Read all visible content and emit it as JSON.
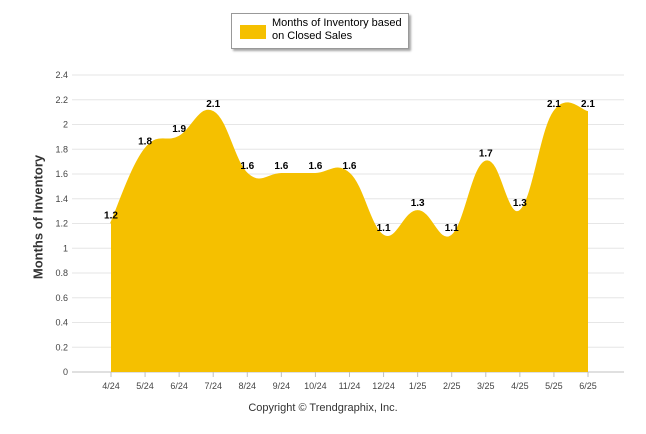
{
  "chart_data": {
    "type": "area",
    "categories": [
      "4/24",
      "5/24",
      "6/24",
      "7/24",
      "8/24",
      "9/24",
      "10/24",
      "11/24",
      "12/24",
      "1/25",
      "2/25",
      "3/25",
      "4/25",
      "5/25",
      "6/25"
    ],
    "series": [
      {
        "name": "Months of Inventory based on Closed Sales",
        "values": [
          1.2,
          1.8,
          1.9,
          2.1,
          1.6,
          1.6,
          1.6,
          1.6,
          1.1,
          1.3,
          1.1,
          1.7,
          1.3,
          2.1,
          2.1
        ],
        "color": "#f5c000"
      }
    ],
    "data_labels": [
      "1.2",
      "1.8",
      "1.9",
      "2.1",
      "1.6",
      "1.6",
      "1.6",
      "1.6",
      "1.1",
      "1.3",
      "1.1",
      "1.7",
      "1.3",
      "2.1",
      "2.1"
    ],
    "ylim": [
      0,
      2.4
    ],
    "yticks": [
      "0",
      "0.2",
      "0.4",
      "0.6",
      "0.8",
      "1",
      "1.2",
      "1.4",
      "1.6",
      "1.8",
      "2",
      "2.2",
      "2.4"
    ],
    "ylabel": "Months of Inventory",
    "xlabel": "",
    "grid": true,
    "legend": "top-center"
  },
  "legend": {
    "label": "Months of Inventory based on Closed Sales",
    "color": "#f5c000"
  },
  "footer": {
    "copyright": "Copyright © Trendgraphix, Inc."
  }
}
